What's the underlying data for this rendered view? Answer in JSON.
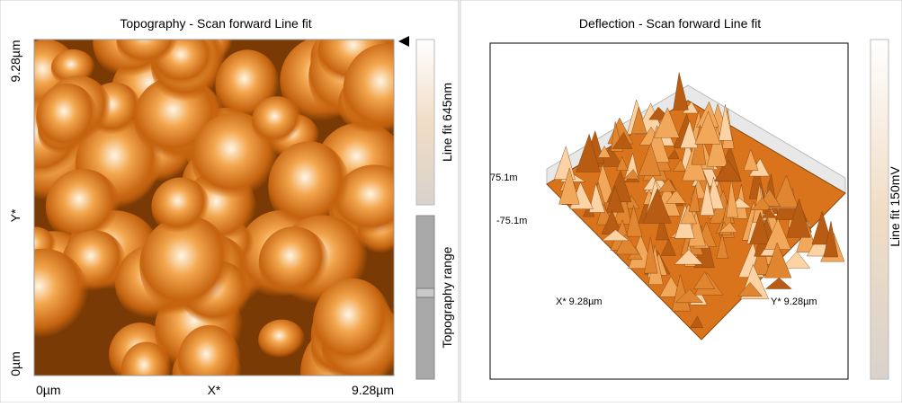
{
  "left_panel": {
    "title": "Topography - Scan forward   Line fit",
    "y_max": "9.28µm",
    "y_label": "Y*",
    "y_min": "0µm",
    "x_min": "0µm",
    "x_label": "X*",
    "x_max": "9.28µm",
    "colorbar_label": "Line fit 645nm",
    "range_label": "Topography range"
  },
  "right_panel": {
    "title": "Deflection - Scan forward   Line fit",
    "z_max": "75.1m",
    "z_min": "-75.1m",
    "x_label": "X* 9.28µm",
    "y_label": "Y* 9.28µm",
    "colorbar_label": "Line fit 150mV"
  }
}
